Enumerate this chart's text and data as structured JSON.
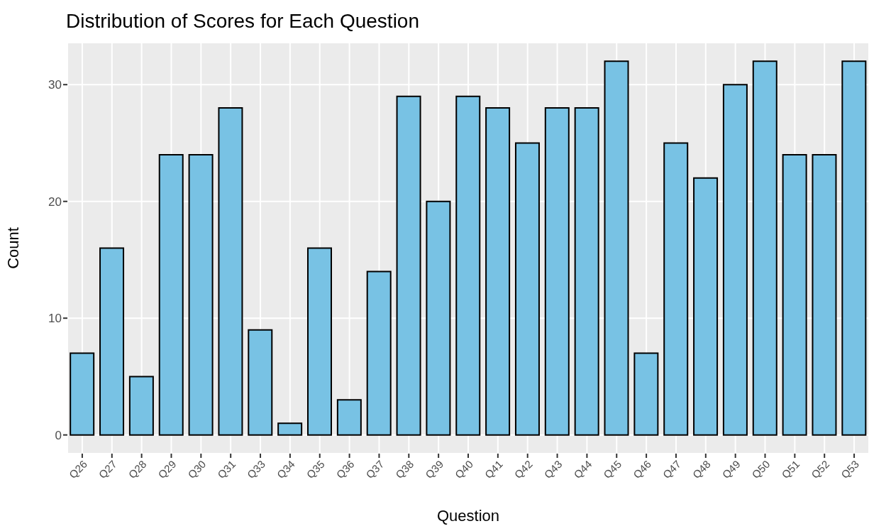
{
  "chart_data": {
    "type": "bar",
    "title": "Distribution of Scores for Each Question",
    "xlabel": "Question",
    "ylabel": "Count",
    "categories": [
      "Q26",
      "Q27",
      "Q28",
      "Q29",
      "Q30",
      "Q31",
      "Q33",
      "Q34",
      "Q35",
      "Q36",
      "Q37",
      "Q38",
      "Q39",
      "Q40",
      "Q41",
      "Q42",
      "Q43",
      "Q44",
      "Q45",
      "Q46",
      "Q47",
      "Q48",
      "Q49",
      "Q50",
      "Q51",
      "Q52",
      "Q53"
    ],
    "values": [
      7,
      16,
      5,
      24,
      24,
      28,
      9,
      1,
      16,
      3,
      14,
      29,
      20,
      29,
      28,
      25,
      28,
      28,
      32,
      7,
      25,
      22,
      30,
      32,
      24,
      24,
      32
    ],
    "color": "#78c2e4",
    "ylim": [
      -1.6,
      33.6
    ],
    "yticks": [
      0,
      10,
      20,
      30
    ],
    "grid": true
  }
}
